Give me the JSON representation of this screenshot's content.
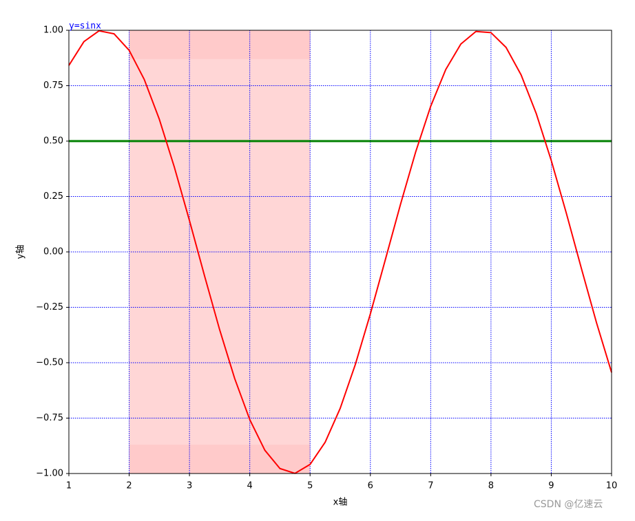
{
  "chart_data": {
    "type": "line",
    "xlabel": "x轴",
    "ylabel": "y轴",
    "annotation": {
      "text": "y=sinx",
      "x": 1,
      "y": 1,
      "color": "#0000ff"
    },
    "watermark": "CSDN @亿速云",
    "x": [
      1,
      1.25,
      1.5,
      1.75,
      2,
      2.25,
      2.5,
      2.75,
      3,
      3.25,
      3.5,
      3.75,
      4,
      4.25,
      4.5,
      4.75,
      5,
      5.25,
      5.5,
      5.75,
      6,
      6.25,
      6.5,
      6.75,
      7,
      7.25,
      7.5,
      7.75,
      8,
      8.25,
      8.5,
      8.75,
      9,
      9.25,
      9.5,
      9.75,
      10
    ],
    "series": [
      {
        "color": "#ff0000",
        "values": [
          0.8415,
          0.949,
          0.9975,
          0.984,
          0.9093,
          0.7781,
          0.5985,
          0.3817,
          0.1411,
          -0.1082,
          -0.3508,
          -0.5716,
          -0.7568,
          -0.895,
          -0.9775,
          -0.9993,
          -0.9589,
          -0.8589,
          -0.7055,
          -0.5083,
          -0.2794,
          -0.0332,
          0.2151,
          0.45,
          0.657,
          0.8231,
          0.938,
          0.9946,
          0.9894,
          0.9227,
          0.7985,
          0.6247,
          0.4121,
          0.1743,
          -0.0752,
          -0.3195,
          -0.544
        ]
      }
    ],
    "hlines": [
      {
        "y": 0.5,
        "color": "#008000"
      }
    ],
    "spans": [
      {
        "x": [
          2,
          5
        ],
        "y": [
          -1,
          1
        ],
        "color": "#ffd6d6"
      },
      {
        "x": [
          2,
          5
        ],
        "y": [
          0.87,
          1
        ],
        "color": "#ffcaca"
      },
      {
        "x": [
          2,
          5
        ],
        "y": [
          -1,
          -0.87
        ],
        "color": "#ffcaca"
      }
    ],
    "xlim": [
      1,
      10
    ],
    "ylim": [
      -1,
      1
    ],
    "xticks": [
      1,
      2,
      3,
      4,
      5,
      6,
      7,
      8,
      9,
      10
    ],
    "yticks": [
      {
        "value": 1,
        "label": "1.00"
      },
      {
        "value": 0.75,
        "label": "0.75"
      },
      {
        "value": 0.5,
        "label": "0.50"
      },
      {
        "value": 0.25,
        "label": "0.25"
      },
      {
        "value": 0,
        "label": "0.00"
      },
      {
        "value": -0.25,
        "label": "−0.25"
      },
      {
        "value": -0.5,
        "label": "−0.50"
      },
      {
        "value": -0.75,
        "label": "−0.75"
      },
      {
        "value": -1,
        "label": "−1.00"
      }
    ],
    "grid": true,
    "grid_color": "#0000ff"
  }
}
